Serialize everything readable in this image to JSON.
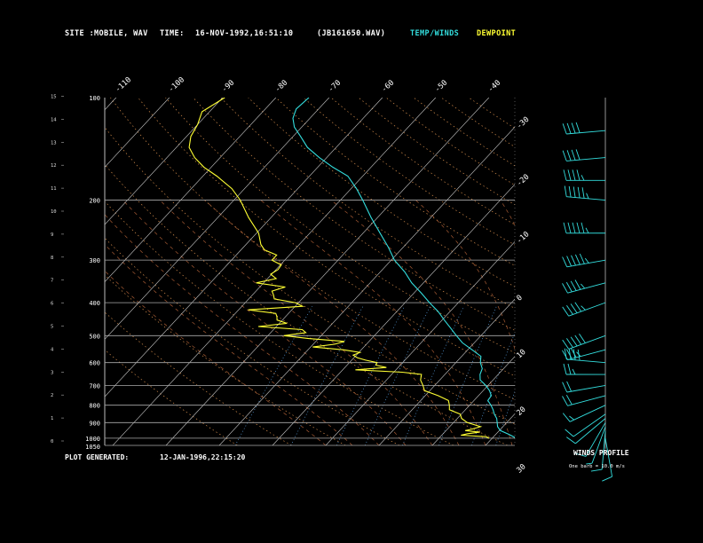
{
  "header": {
    "site_label": "SITE :",
    "site_value": "MOBILE, WAV",
    "time_label": "TIME:",
    "time_value": "16-NOV-1992,16:51:10",
    "file": "(JB161650.WAV)",
    "legend_temp": "TEMP/WINDS",
    "legend_dew": "DEWPOINT"
  },
  "footer": {
    "generated_label": "PLOT GENERATED:",
    "generated_value": "12-JAN-1996,22:15:20",
    "wind_title": "WINDS PROFILE",
    "wind_note": "One barb = 10.0 m/s"
  },
  "colors": {
    "temp": "#33dddd",
    "dewpoint": "#ffff33",
    "isobar": "#aaaaaa",
    "isotherm": "#cccccc",
    "dry_adiabat": "#d08a4a",
    "mixing_ratio": "#5aa0e0",
    "moist_adiabat": "#d07040",
    "wind": "#33dddd"
  },
  "chart_data": {
    "type": "line",
    "title": "",
    "xlabel": "",
    "ylabel": "",
    "height_ticks": [
      "15",
      "14",
      "13",
      "12",
      "11",
      "10",
      "9",
      "8",
      "7",
      "6",
      "5",
      "4",
      "3",
      "2",
      "1",
      "0"
    ],
    "pressure_ticks": [
      "100",
      "200",
      "300",
      "400",
      "500",
      "600",
      "700",
      "800",
      "900",
      "1000",
      "1050"
    ],
    "pressure_values": [
      100,
      200,
      300,
      400,
      500,
      600,
      700,
      800,
      900,
      1000,
      1050
    ],
    "ylim": [
      1050,
      100
    ],
    "temp_tick_labels_top": [
      "-110",
      "-100",
      "-90",
      "-80",
      "-70",
      "-60",
      "-50",
      "-40"
    ],
    "temp_tick_labels_right": [
      "-30",
      "-20",
      "-10",
      "0",
      "10",
      "20",
      "30"
    ],
    "series": [
      {
        "name": "TEMP/WINDS",
        "points": [
          [
            1000,
            24.5
          ],
          [
            975,
            22.5
          ],
          [
            950,
            20.2
          ],
          [
            925,
            19.0
          ],
          [
            900,
            18.2
          ],
          [
            875,
            17.4
          ],
          [
            850,
            16.2
          ],
          [
            825,
            15.2
          ],
          [
            800,
            14.0
          ],
          [
            775,
            12.6
          ],
          [
            750,
            12.4
          ],
          [
            725,
            11.2
          ],
          [
            700,
            9.6
          ],
          [
            675,
            7.6
          ],
          [
            650,
            6.6
          ],
          [
            625,
            6.0
          ],
          [
            600,
            4.6
          ],
          [
            575,
            3.6
          ],
          [
            550,
            0.8
          ],
          [
            525,
            -2.2
          ],
          [
            500,
            -4.6
          ],
          [
            475,
            -7.0
          ],
          [
            450,
            -9.6
          ],
          [
            425,
            -12.2
          ],
          [
            400,
            -15.4
          ],
          [
            375,
            -18.6
          ],
          [
            350,
            -22.2
          ],
          [
            325,
            -25.4
          ],
          [
            300,
            -29.4
          ],
          [
            275,
            -32.8
          ],
          [
            250,
            -36.8
          ],
          [
            225,
            -41.2
          ],
          [
            200,
            -45.8
          ],
          [
            185,
            -49.0
          ],
          [
            170,
            -52.8
          ],
          [
            160,
            -57.2
          ],
          [
            150,
            -61.4
          ],
          [
            140,
            -65.4
          ],
          [
            130,
            -68.6
          ],
          [
            122,
            -71.4
          ],
          [
            115,
            -73.2
          ],
          [
            108,
            -74.2
          ],
          [
            100,
            -73.8
          ]
        ]
      },
      {
        "name": "DEWPOINT",
        "points": [
          [
            1000,
            19.4
          ],
          [
            990,
            18.6
          ],
          [
            980,
            13.6
          ],
          [
            970,
            14.6
          ],
          [
            960,
            16.6
          ],
          [
            950,
            13.6
          ],
          [
            940,
            14.6
          ],
          [
            925,
            15.8
          ],
          [
            900,
            12.6
          ],
          [
            875,
            10.8
          ],
          [
            850,
            9.8
          ],
          [
            825,
            7.0
          ],
          [
            800,
            6.2
          ],
          [
            775,
            5.2
          ],
          [
            750,
            2.4
          ],
          [
            725,
            -1.0
          ],
          [
            700,
            -2.2
          ],
          [
            675,
            -3.6
          ],
          [
            650,
            -4.4
          ],
          [
            640,
            -8.4
          ],
          [
            630,
            -17.6
          ],
          [
            620,
            -12.2
          ],
          [
            610,
            -14.6
          ],
          [
            600,
            -14.8
          ],
          [
            590,
            -17.4
          ],
          [
            580,
            -19.4
          ],
          [
            570,
            -20.6
          ],
          [
            560,
            -19.8
          ],
          [
            550,
            -23.4
          ],
          [
            540,
            -29.6
          ],
          [
            530,
            -26.0
          ],
          [
            520,
            -24.6
          ],
          [
            510,
            -31.8
          ],
          [
            500,
            -37.0
          ],
          [
            490,
            -33.4
          ],
          [
            480,
            -34.6
          ],
          [
            470,
            -43.4
          ],
          [
            460,
            -38.6
          ],
          [
            450,
            -41.0
          ],
          [
            440,
            -41.6
          ],
          [
            430,
            -42.4
          ],
          [
            420,
            -48.2
          ],
          [
            410,
            -38.6
          ],
          [
            400,
            -40.6
          ],
          [
            390,
            -45.2
          ],
          [
            380,
            -46.0
          ],
          [
            370,
            -47.0
          ],
          [
            360,
            -45.2
          ],
          [
            350,
            -51.4
          ],
          [
            340,
            -48.4
          ],
          [
            330,
            -50.2
          ],
          [
            320,
            -49.6
          ],
          [
            310,
            -49.8
          ],
          [
            300,
            -52.4
          ],
          [
            290,
            -52.4
          ],
          [
            280,
            -55.6
          ],
          [
            270,
            -57.2
          ],
          [
            250,
            -59.6
          ],
          [
            225,
            -64.2
          ],
          [
            200,
            -68.8
          ],
          [
            185,
            -72.4
          ],
          [
            170,
            -77.4
          ],
          [
            160,
            -81.4
          ],
          [
            150,
            -84.8
          ],
          [
            140,
            -87.6
          ],
          [
            130,
            -89.2
          ],
          [
            120,
            -90.0
          ],
          [
            110,
            -91.4
          ],
          [
            100,
            -89.6
          ]
        ]
      }
    ],
    "winds": {
      "title": "WINDS PROFILE",
      "note": "One barb = 10.0 m/s",
      "levels": [
        {
          "p": 1000,
          "dir": 170,
          "spd": 10
        },
        {
          "p": 950,
          "dir": 185,
          "spd": 10
        },
        {
          "p": 925,
          "dir": 200,
          "spd": 5
        },
        {
          "p": 900,
          "dir": 210,
          "spd": 10
        },
        {
          "p": 875,
          "dir": 230,
          "spd": 10
        },
        {
          "p": 850,
          "dir": 235,
          "spd": 10
        },
        {
          "p": 800,
          "dir": 245,
          "spd": 15
        },
        {
          "p": 750,
          "dir": 255,
          "spd": 20
        },
        {
          "p": 700,
          "dir": 260,
          "spd": 20
        },
        {
          "p": 650,
          "dir": 270,
          "spd": 25
        },
        {
          "p": 600,
          "dir": 275,
          "spd": 40
        },
        {
          "p": 550,
          "dir": 255,
          "spd": 35
        },
        {
          "p": 500,
          "dir": 250,
          "spd": 50
        },
        {
          "p": 400,
          "dir": 250,
          "spd": 45
        },
        {
          "p": 350,
          "dir": 255,
          "spd": 45
        },
        {
          "p": 300,
          "dir": 260,
          "spd": 55
        },
        {
          "p": 250,
          "dir": 270,
          "spd": 55
        },
        {
          "p": 200,
          "dir": 275,
          "spd": 55
        },
        {
          "p": 175,
          "dir": 270,
          "spd": 45
        },
        {
          "p": 150,
          "dir": 265,
          "spd": 40
        },
        {
          "p": 125,
          "dir": 265,
          "spd": 40
        }
      ]
    }
  }
}
